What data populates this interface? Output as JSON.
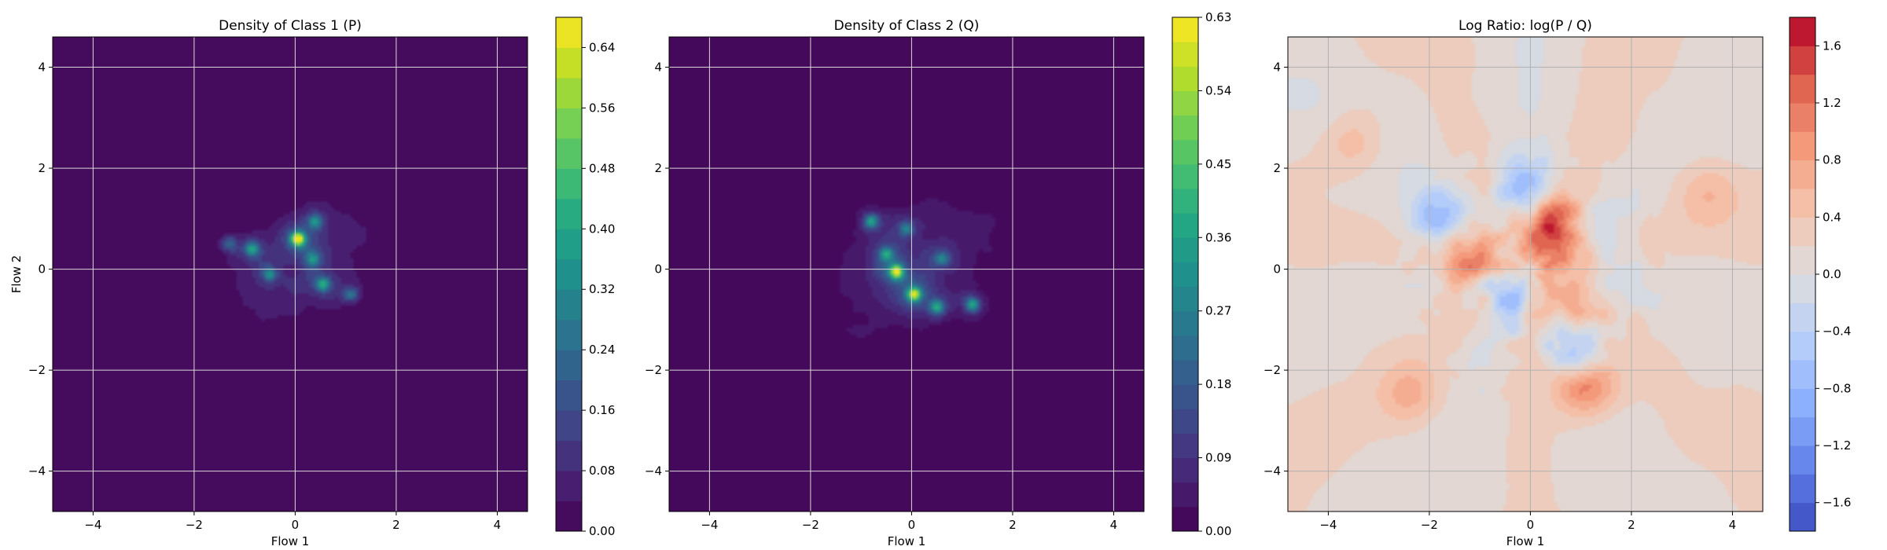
{
  "chart_data": [
    {
      "type": "heatmap",
      "title": "Density of Class 1 (P)",
      "xlabel": "Flow 1",
      "ylabel": "Flow 2",
      "xlim": [
        -4.8,
        4.6
      ],
      "ylim": [
        -4.8,
        4.6
      ],
      "x_ticks": [
        -4,
        -2,
        0,
        2,
        4
      ],
      "y_ticks": [
        -4,
        -2,
        0,
        2,
        4
      ],
      "grid": true,
      "colormap": "viridis",
      "colorbar": {
        "min": 0.0,
        "max": 0.68,
        "levels": 17,
        "ticks": [
          0.0,
          0.08,
          0.16,
          0.24,
          0.32,
          0.4,
          0.48,
          0.56,
          0.64
        ],
        "tick_labels": [
          "0.00",
          "0.08",
          "0.16",
          "0.24",
          "0.32",
          "0.40",
          "0.48",
          "0.56",
          "0.64"
        ]
      },
      "blob": {
        "center": [
          0.1,
          0.05
        ],
        "angle_deg": 35,
        "sx": 1.9,
        "sy": 1.05
      },
      "peaks": [
        {
          "x": 0.05,
          "y": 0.6,
          "value": 0.6
        },
        {
          "x": -0.85,
          "y": 0.4,
          "value": 0.3
        },
        {
          "x": 0.4,
          "y": 0.95,
          "value": 0.25
        },
        {
          "x": 0.55,
          "y": -0.3,
          "value": 0.3
        },
        {
          "x": -0.5,
          "y": -0.1,
          "value": 0.22
        },
        {
          "x": 1.1,
          "y": -0.5,
          "value": 0.2
        },
        {
          "x": -1.3,
          "y": 0.5,
          "value": 0.18
        },
        {
          "x": 0.35,
          "y": 0.2,
          "value": 0.22
        }
      ]
    },
    {
      "type": "heatmap",
      "title": "Density of Class 2 (Q)",
      "xlabel": "Flow 1",
      "ylabel": "",
      "xlim": [
        -4.8,
        4.6
      ],
      "ylim": [
        -4.8,
        4.6
      ],
      "x_ticks": [
        -4,
        -2,
        0,
        2,
        4
      ],
      "y_ticks": [
        -4,
        -2,
        0,
        2,
        4
      ],
      "grid": true,
      "colormap": "viridis",
      "colorbar": {
        "min": 0.0,
        "max": 0.63,
        "levels": 21,
        "ticks": [
          0.0,
          0.09,
          0.18,
          0.27,
          0.36,
          0.45,
          0.54,
          0.63
        ],
        "tick_labels": [
          "0.00",
          "0.09",
          "0.18",
          "0.27",
          "0.36",
          "0.45",
          "0.54",
          "0.63"
        ]
      },
      "blob": {
        "center": [
          0.0,
          0.1
        ],
        "angle_deg": 35,
        "sx": 2.0,
        "sy": 1.15
      },
      "peaks": [
        {
          "x": -0.3,
          "y": -0.05,
          "value": 0.5
        },
        {
          "x": 0.05,
          "y": -0.5,
          "value": 0.45
        },
        {
          "x": 1.2,
          "y": -0.7,
          "value": 0.3
        },
        {
          "x": -0.8,
          "y": 0.95,
          "value": 0.28
        },
        {
          "x": -0.5,
          "y": 0.3,
          "value": 0.25
        },
        {
          "x": 0.5,
          "y": -0.75,
          "value": 0.28
        },
        {
          "x": -0.1,
          "y": 0.8,
          "value": 0.2
        },
        {
          "x": 0.6,
          "y": 0.2,
          "value": 0.2
        }
      ]
    },
    {
      "type": "heatmap",
      "title": "Log Ratio: log(P / Q)",
      "xlabel": "Flow 1",
      "ylabel": "",
      "xlim": [
        -4.8,
        4.6
      ],
      "ylim": [
        -4.8,
        4.6
      ],
      "x_ticks": [
        -4,
        -2,
        0,
        2,
        4
      ],
      "y_ticks": [
        -4,
        -2,
        0,
        2,
        4
      ],
      "grid": true,
      "colormap": "coolwarm",
      "colorbar": {
        "min": -1.8,
        "max": 1.8,
        "levels": 18,
        "ticks": [
          -1.6,
          -1.2,
          -0.8,
          -0.4,
          0.0,
          0.4,
          0.8,
          1.2,
          1.6
        ],
        "tick_labels": [
          "−1.6",
          "−1.2",
          "−0.8",
          "−0.4",
          "0.0",
          "0.4",
          "0.8",
          "1.2",
          "1.6"
        ]
      },
      "background_value": 0.15,
      "features": [
        {
          "x": 0.4,
          "y": 0.8,
          "value": 1.6
        },
        {
          "x": 1.1,
          "y": -2.3,
          "value": 1.1
        },
        {
          "x": -1.2,
          "y": 0.2,
          "value": 0.9
        },
        {
          "x": 0.7,
          "y": -0.5,
          "value": 0.8
        },
        {
          "x": -0.1,
          "y": 1.6,
          "value": -0.9
        },
        {
          "x": -1.8,
          "y": 1.0,
          "value": -0.8
        },
        {
          "x": 0.9,
          "y": -1.6,
          "value": -0.8
        },
        {
          "x": -0.4,
          "y": -0.5,
          "value": -0.7
        },
        {
          "x": 1.5,
          "y": 0.5,
          "value": -0.4
        },
        {
          "x": -2.4,
          "y": -2.5,
          "value": 0.45
        },
        {
          "x": 3.5,
          "y": 1.5,
          "value": 0.4
        },
        {
          "x": -3.5,
          "y": 2.5,
          "value": 0.45
        }
      ]
    }
  ]
}
